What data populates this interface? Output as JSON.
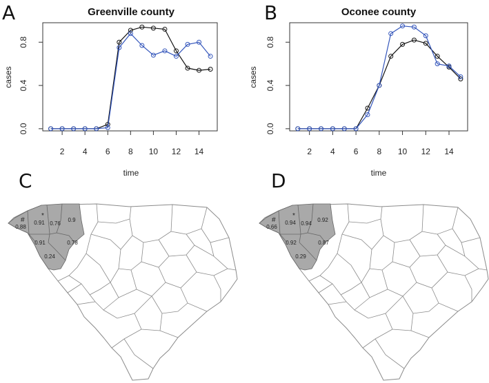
{
  "chart_data": [
    {
      "panel": "A",
      "type": "line",
      "title": "Greenville county",
      "xlabel": "time",
      "ylabel": "cases",
      "xlim": [
        0.3,
        15.6
      ],
      "ylim": [
        -0.02,
        0.98
      ],
      "xticks": [
        2,
        4,
        6,
        8,
        10,
        12,
        14
      ],
      "yticks": [
        0.0,
        0.4,
        0.8
      ],
      "ytick_labels": [
        "0.0",
        "0.4",
        "0.8"
      ],
      "x": [
        1,
        2,
        3,
        4,
        5,
        6,
        7,
        8,
        9,
        10,
        11,
        12,
        13,
        14,
        15
      ],
      "series": [
        {
          "name": "black",
          "color": "#111111",
          "values": [
            0,
            0,
            0,
            0,
            0,
            0.04,
            0.8,
            0.91,
            0.94,
            0.93,
            0.92,
            0.72,
            0.56,
            0.54,
            0.55
          ]
        },
        {
          "name": "blue",
          "color": "#3355bb",
          "values": [
            0,
            0,
            0,
            0,
            0,
            0.01,
            0.75,
            0.88,
            0.77,
            0.68,
            0.72,
            0.67,
            0.78,
            0.8,
            0.67
          ]
        }
      ]
    },
    {
      "panel": "B",
      "type": "line",
      "title": "Oconee county",
      "xlabel": "time",
      "ylabel": "cases",
      "xlim": [
        0.3,
        15.6
      ],
      "ylim": [
        -0.02,
        0.98
      ],
      "xticks": [
        2,
        4,
        6,
        8,
        10,
        12,
        14
      ],
      "yticks": [
        0.0,
        0.4,
        0.8
      ],
      "ytick_labels": [
        "0.0",
        "0.4",
        "0.8"
      ],
      "x": [
        1,
        2,
        3,
        4,
        5,
        6,
        7,
        8,
        9,
        10,
        11,
        12,
        13,
        14,
        15
      ],
      "series": [
        {
          "name": "black",
          "color": "#111111",
          "values": [
            0,
            0,
            0,
            0,
            0,
            0,
            0.19,
            0.4,
            0.67,
            0.78,
            0.82,
            0.79,
            0.67,
            0.57,
            0.46
          ]
        },
        {
          "name": "blue",
          "color": "#3355bb",
          "values": [
            0,
            0,
            0,
            0,
            0,
            0,
            0.13,
            0.4,
            0.88,
            0.95,
            0.94,
            0.86,
            0.6,
            0.58,
            0.48
          ]
        }
      ]
    }
  ],
  "maps": [
    {
      "panel": "C",
      "highlight_color": "#a9a9a9",
      "symbols": {
        "hash": "#",
        "star": "*"
      },
      "labels": {
        "w": "0.88",
        "n1": "0.91",
        "n2": "0.76",
        "ne": "0.9",
        "mid": "0.91",
        "e": "0.78",
        "s": "0.24"
      }
    },
    {
      "panel": "D",
      "highlight_color": "#a9a9a9",
      "symbols": {
        "hash": "#",
        "star": "*"
      },
      "labels": {
        "w": "0.66",
        "n1": "0.94",
        "n2": "0.94",
        "ne": "0.92",
        "mid": "0.92",
        "e": "0.87",
        "s": "0.29"
      }
    }
  ]
}
